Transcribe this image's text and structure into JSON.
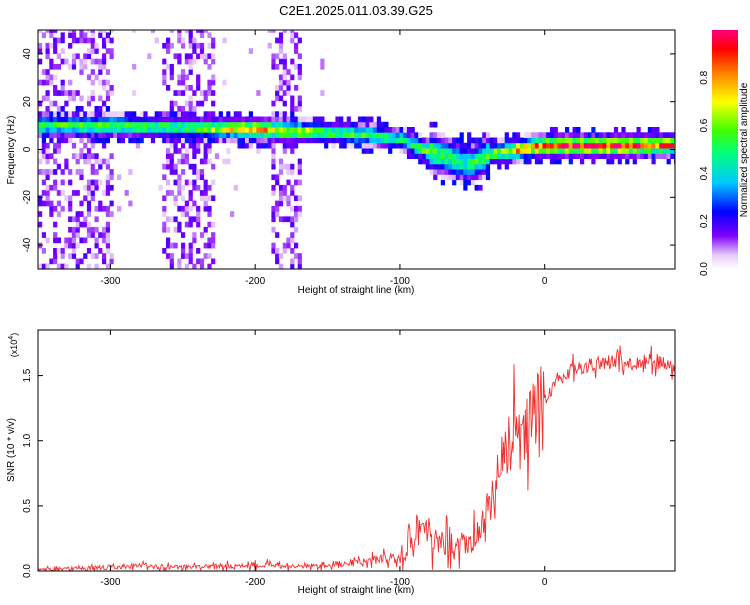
{
  "figure_title": "C2E1.2025.011.03.39.G25",
  "chart_data": [
    {
      "type": "heatmap",
      "xlabel": "Height of straight line (km)",
      "ylabel": "Frequency (Hz)",
      "xlim": [
        -350,
        90
      ],
      "ylim": [
        -50,
        50
      ],
      "x_ticks": [
        -300,
        -200,
        -100,
        0
      ],
      "y_ticks": [
        -40,
        -20,
        0,
        20,
        40
      ],
      "colorbar": {
        "label": "Normalized spectral amplitude",
        "range": [
          0,
          1
        ],
        "ticks": [
          0.0,
          0.2,
          0.4,
          0.6,
          0.8
        ]
      },
      "ridge": {
        "x": [
          -350,
          -300,
          -250,
          -200,
          -150,
          -120,
          -100,
          -80,
          -65,
          -55,
          -48,
          -40,
          -30,
          -20,
          -10,
          0,
          20,
          50,
          90
        ],
        "freq": [
          9,
          9,
          8,
          7.5,
          6,
          5,
          3,
          -2,
          -5,
          -7,
          -6,
          -3,
          -2,
          -1,
          0,
          0.5,
          0.5,
          0.5,
          1
        ],
        "peak_amplitude": [
          0.55,
          0.6,
          0.55,
          0.85,
          0.6,
          0.55,
          0.5,
          0.65,
          0.55,
          0.5,
          0.55,
          0.6,
          0.7,
          0.85,
          0.9,
          0.95,
          1.0,
          1.0,
          0.9
        ]
      },
      "noise_bands_km": [
        [
          -350,
          -300
        ],
        [
          -265,
          -230
        ],
        [
          -190,
          -170
        ]
      ]
    },
    {
      "type": "line",
      "xlabel": "Height of straight line (km)",
      "ylabel": "SNR (10 * v/v)",
      "y_multiplier": "(x10",
      "y_multiplier_exp": "4",
      "y_multiplier_close": ")",
      "xlim": [
        -350,
        90
      ],
      "ylim": [
        0,
        1.85
      ],
      "x_ticks": [
        -300,
        -200,
        -100,
        0
      ],
      "y_ticks": [
        0.0,
        0.5,
        1.0,
        1.5
      ],
      "color": "#f03030",
      "series": [
        {
          "x": [
            -350,
            -320,
            -300,
            -280,
            -250,
            -220,
            -200,
            -180,
            -150,
            -130,
            -110,
            -100,
            -95,
            -90,
            -85,
            -80,
            -75,
            -70,
            -60,
            -50,
            -45,
            -40,
            -35,
            -30,
            -25,
            -20,
            -15,
            -10,
            -5,
            0,
            5,
            10,
            20,
            30,
            40,
            50,
            60,
            70,
            80,
            90
          ],
          "y": [
            0.01,
            0.02,
            0.03,
            0.04,
            0.03,
            0.04,
            0.05,
            0.04,
            0.05,
            0.06,
            0.1,
            0.13,
            0.2,
            0.3,
            0.35,
            0.28,
            0.22,
            0.2,
            0.18,
            0.2,
            0.3,
            0.45,
            0.6,
            0.85,
            0.95,
            1.1,
            0.95,
            1.2,
            1.35,
            1.3,
            1.4,
            1.48,
            1.55,
            1.58,
            1.6,
            1.62,
            1.58,
            1.62,
            1.6,
            1.55
          ]
        }
      ]
    }
  ]
}
